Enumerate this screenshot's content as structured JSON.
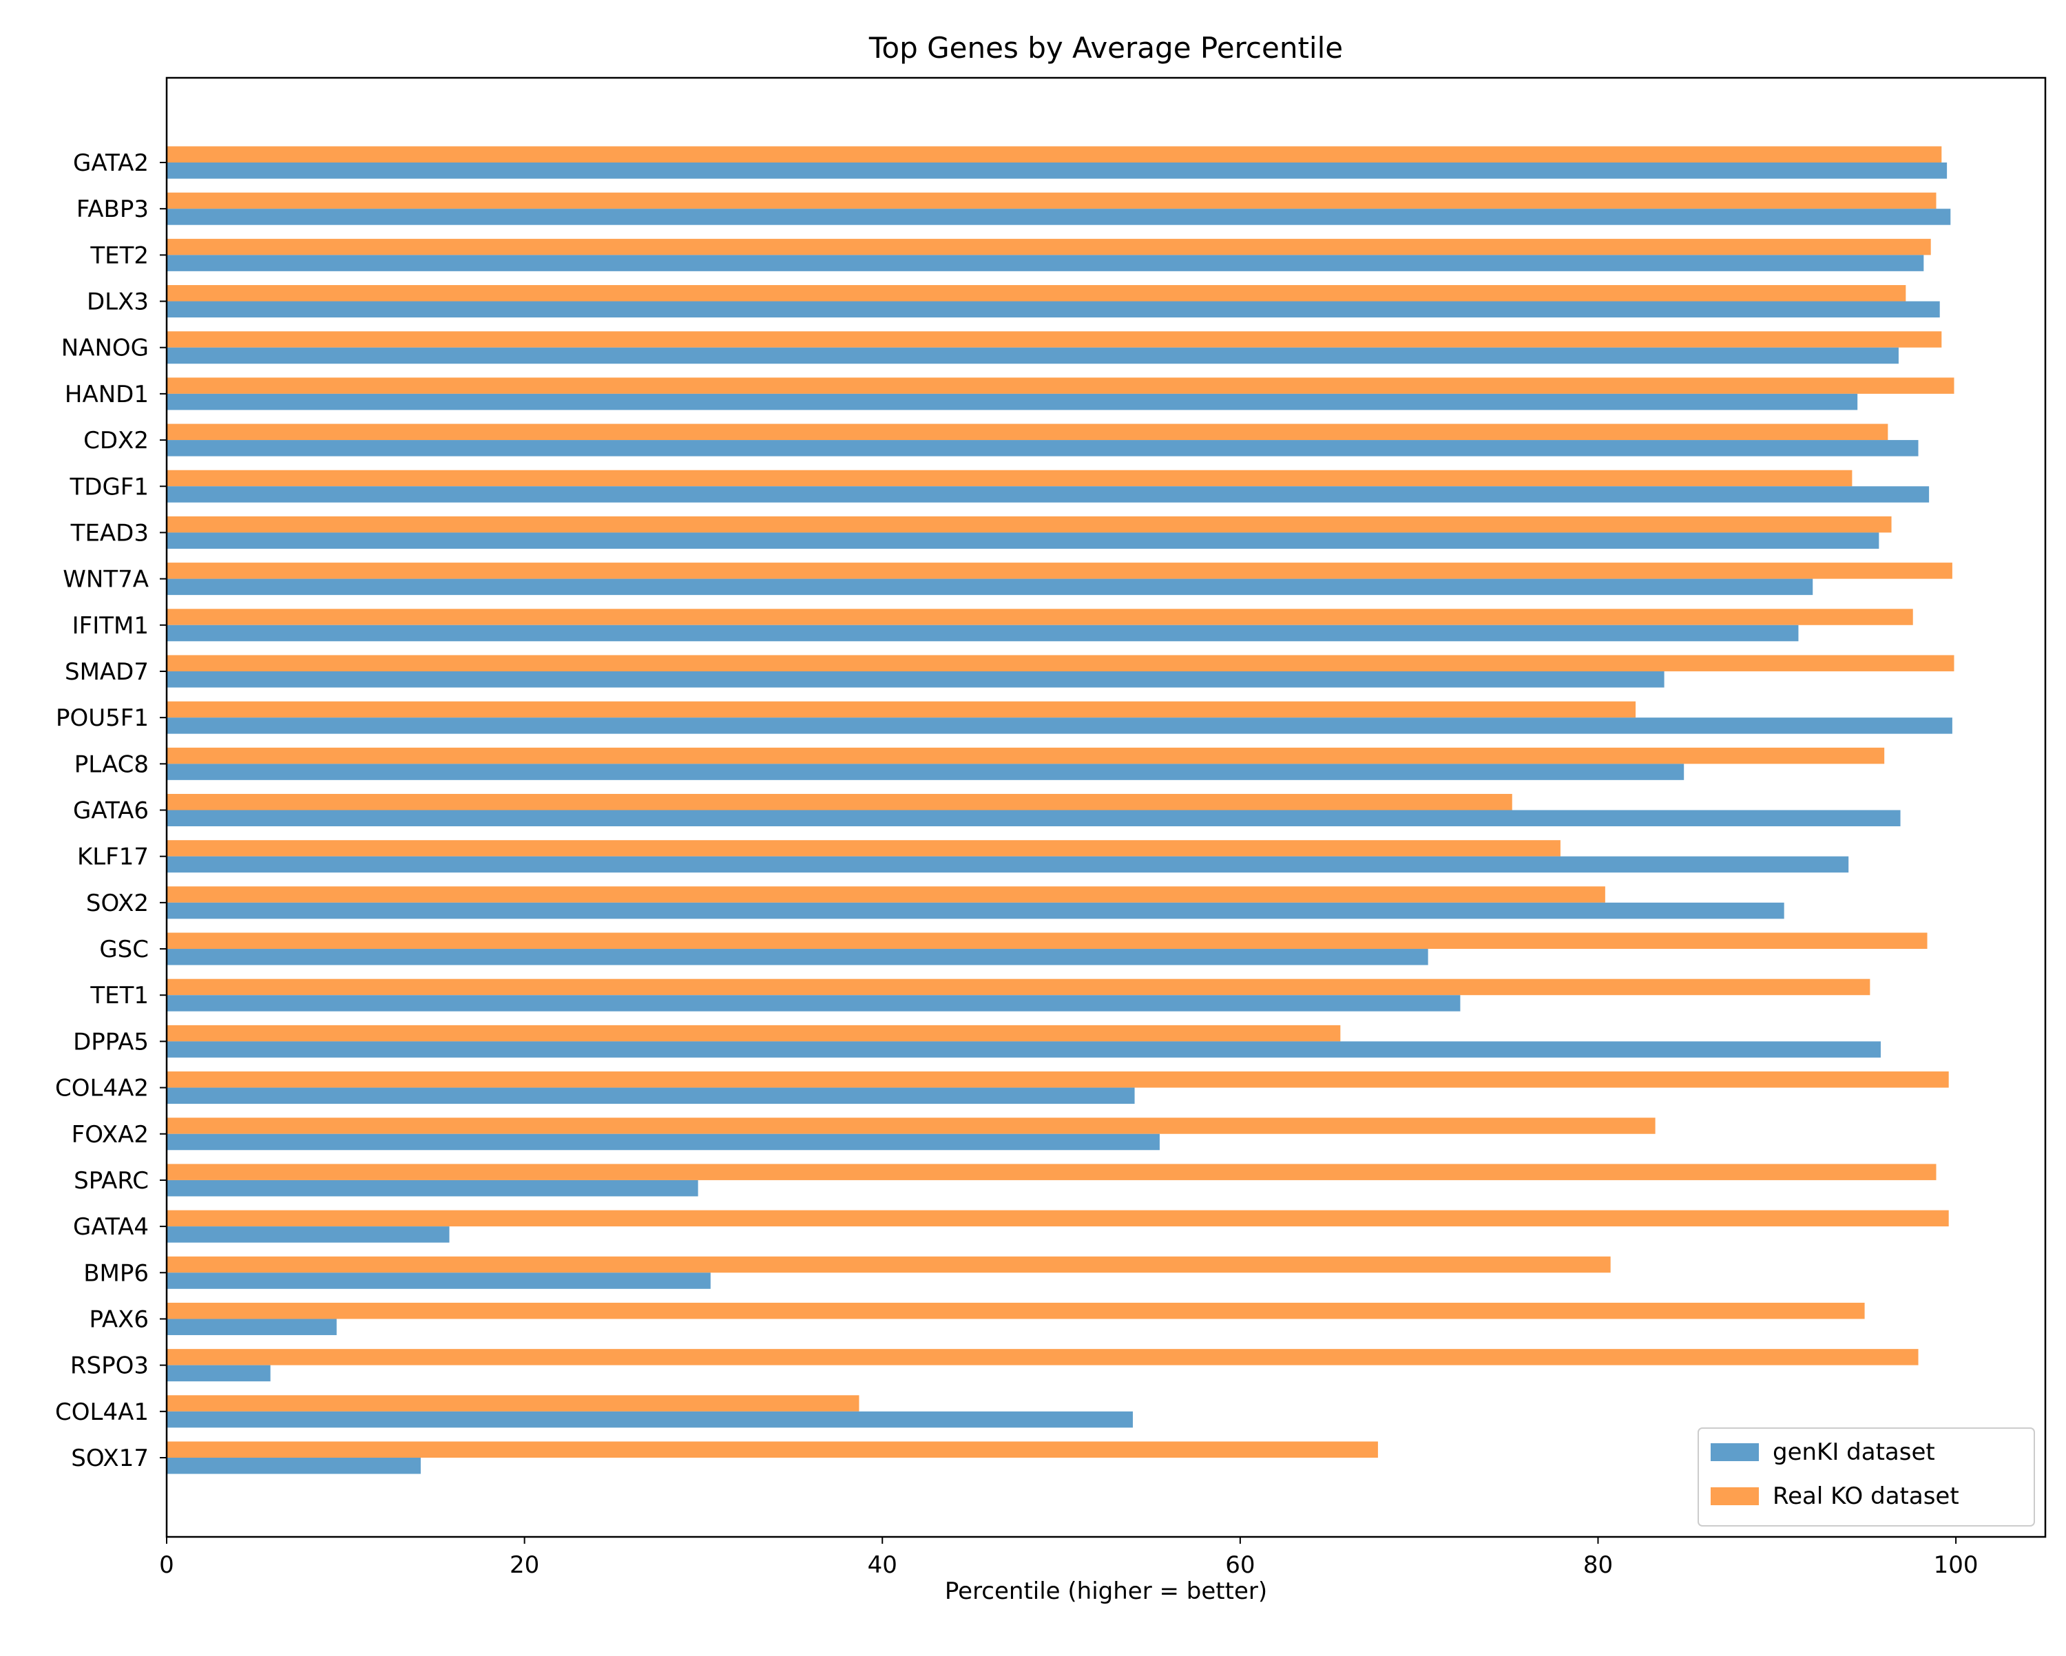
{
  "chart_data": {
    "type": "bar",
    "orientation": "horizontal",
    "title": "Top Genes by Average Percentile",
    "xlabel": "Percentile (higher = better)",
    "ylabel": "",
    "xlim": [
      0,
      105
    ],
    "xticks": [
      "0",
      "20",
      "40",
      "60",
      "80",
      "100"
    ],
    "grid": false,
    "legend_position": "lower-right",
    "categories": [
      "GATA2",
      "FABP3",
      "TET2",
      "DLX3",
      "NANOG",
      "HAND1",
      "CDX2",
      "TDGF1",
      "TEAD3",
      "WNT7A",
      "IFITM1",
      "SMAD7",
      "POU5F1",
      "PLAC8",
      "GATA6",
      "KLF17",
      "SOX2",
      "GSC",
      "TET1",
      "DPPA5",
      "COL4A2",
      "FOXA2",
      "SPARC",
      "GATA4",
      "BMP6",
      "PAX6",
      "RSPO3",
      "COL4A1",
      "SOX17"
    ],
    "series": [
      {
        "name": "genKI dataset",
        "color": "#5f9ecb",
        "values": [
          99.5,
          99.7,
          98.2,
          99.1,
          96.8,
          94.5,
          97.9,
          98.5,
          95.7,
          92.0,
          91.2,
          83.7,
          99.8,
          84.8,
          96.9,
          94.0,
          90.4,
          70.5,
          72.3,
          95.8,
          54.1,
          55.5,
          29.7,
          15.8,
          30.4,
          9.5,
          5.8,
          54.0,
          14.2
        ]
      },
      {
        "name": "Real KO dataset",
        "color": "#fea04f",
        "values": [
          99.2,
          98.9,
          98.6,
          97.2,
          99.2,
          99.9,
          96.2,
          94.2,
          96.4,
          99.8,
          97.6,
          99.9,
          82.1,
          96.0,
          75.2,
          77.9,
          80.4,
          98.4,
          95.2,
          65.6,
          99.6,
          83.2,
          98.9,
          99.6,
          80.7,
          94.9,
          97.9,
          38.7,
          67.7
        ]
      }
    ]
  }
}
